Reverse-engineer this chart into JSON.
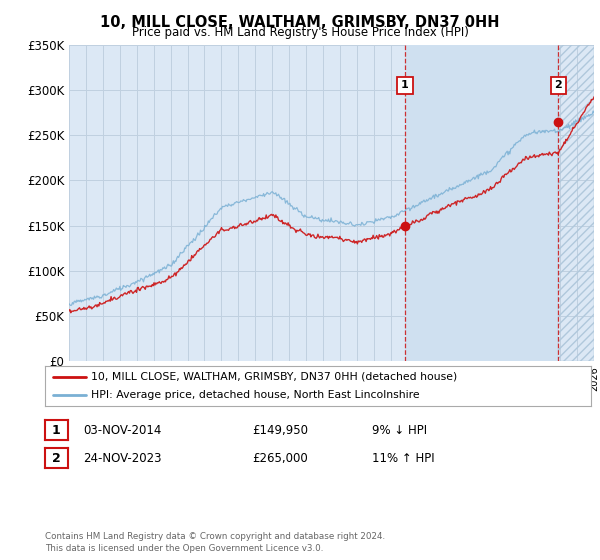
{
  "title": "10, MILL CLOSE, WALTHAM, GRIMSBY, DN37 0HH",
  "subtitle": "Price paid vs. HM Land Registry's House Price Index (HPI)",
  "background_color": "#ffffff",
  "plot_bg_color": "#dce8f5",
  "grid_color": "#c8d8e8",
  "hpi_color": "#7ab0d4",
  "price_color": "#cc1111",
  "sale1_date_num": 2014.84,
  "sale2_date_num": 2023.9,
  "sale1_price": 149950,
  "sale2_price": 265000,
  "ylim_min": 0,
  "ylim_max": 350000,
  "xlim_min": 1995,
  "xlim_max": 2026,
  "legend_line1": "10, MILL CLOSE, WALTHAM, GRIMSBY, DN37 0HH (detached house)",
  "legend_line2": "HPI: Average price, detached house, North East Lincolnshire",
  "table_row1": [
    "1",
    "03-NOV-2014",
    "£149,950",
    "9% ↓ HPI"
  ],
  "table_row2": [
    "2",
    "24-NOV-2023",
    "£265,000",
    "11% ↑ HPI"
  ],
  "footnote": "Contains HM Land Registry data © Crown copyright and database right 2024.\nThis data is licensed under the Open Government Licence v3.0.",
  "ytick_labels": [
    "£0",
    "£50K",
    "£100K",
    "£150K",
    "£200K",
    "£250K",
    "£300K",
    "£350K"
  ],
  "ytick_values": [
    0,
    50000,
    100000,
    150000,
    200000,
    250000,
    300000,
    350000
  ],
  "xtick_values": [
    1995,
    1996,
    1997,
    1998,
    1999,
    2000,
    2001,
    2002,
    2003,
    2004,
    2005,
    2006,
    2007,
    2008,
    2009,
    2010,
    2011,
    2012,
    2013,
    2014,
    2015,
    2016,
    2017,
    2018,
    2019,
    2020,
    2021,
    2022,
    2023,
    2024,
    2025,
    2026
  ],
  "shade_between_sales_color": "#cfe0f0",
  "shade_after_sale2_color": "#dce8f5"
}
